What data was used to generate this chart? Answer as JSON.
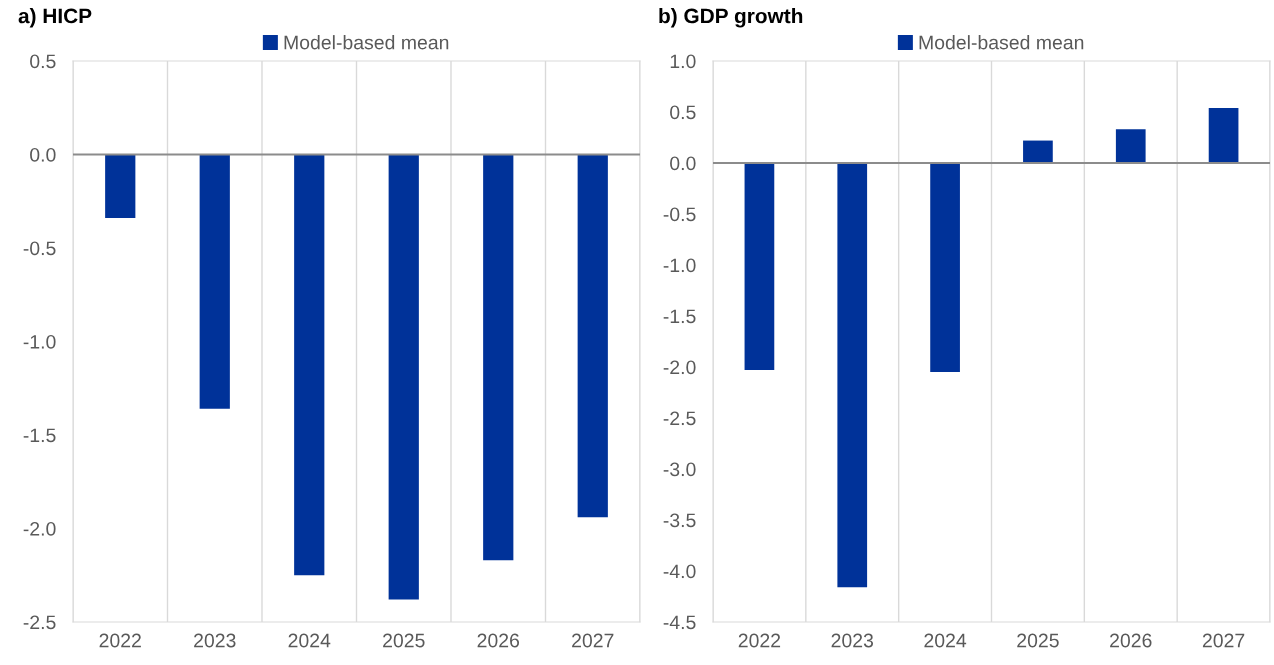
{
  "chart_data": [
    {
      "type": "bar",
      "title": "a) HICP",
      "categories": [
        "2022",
        "2023",
        "2024",
        "2025",
        "2026",
        "2027"
      ],
      "series": [
        {
          "name": "Model-based mean",
          "color": "#003299",
          "values": [
            -0.34,
            -1.36,
            -2.25,
            -2.38,
            -2.17,
            -1.94
          ]
        }
      ],
      "ylim": [
        -2.5,
        0.5
      ],
      "yticks": [
        {
          "value": 0.5,
          "label": "0.5"
        },
        {
          "value": 0,
          "label": "0.0"
        },
        {
          "value": -0.5,
          "label": "-0.5"
        },
        {
          "value": -1,
          "label": "-1.0"
        },
        {
          "value": -1.5,
          "label": "-1.5"
        },
        {
          "value": -2,
          "label": "-2.0"
        },
        {
          "value": -2.5,
          "label": "-2.5"
        }
      ],
      "grid": "x",
      "legend": "top"
    },
    {
      "type": "bar",
      "title": "b) GDP growth",
      "categories": [
        "2022",
        "2023",
        "2024",
        "2025",
        "2026",
        "2027"
      ],
      "series": [
        {
          "name": "Model-based mean",
          "color": "#003299",
          "values": [
            -2.03,
            -4.16,
            -2.05,
            0.22,
            0.33,
            0.54
          ]
        }
      ],
      "ylim": [
        -4.5,
        1.0
      ],
      "yticks": [
        {
          "value": 1,
          "label": "1.0"
        },
        {
          "value": 0.5,
          "label": "0.5"
        },
        {
          "value": 0,
          "label": "0.0"
        },
        {
          "value": -0.5,
          "label": "-0.5"
        },
        {
          "value": -1,
          "label": "-1.0"
        },
        {
          "value": -1.5,
          "label": "-1.5"
        },
        {
          "value": -2,
          "label": "-2.0"
        },
        {
          "value": -2.5,
          "label": "-2.5"
        },
        {
          "value": -3,
          "label": "-3.0"
        },
        {
          "value": -3.5,
          "label": "-3.5"
        },
        {
          "value": -4,
          "label": "-4.0"
        },
        {
          "value": -4.5,
          "label": "-4.5"
        }
      ],
      "grid": "x",
      "legend": "top"
    }
  ]
}
